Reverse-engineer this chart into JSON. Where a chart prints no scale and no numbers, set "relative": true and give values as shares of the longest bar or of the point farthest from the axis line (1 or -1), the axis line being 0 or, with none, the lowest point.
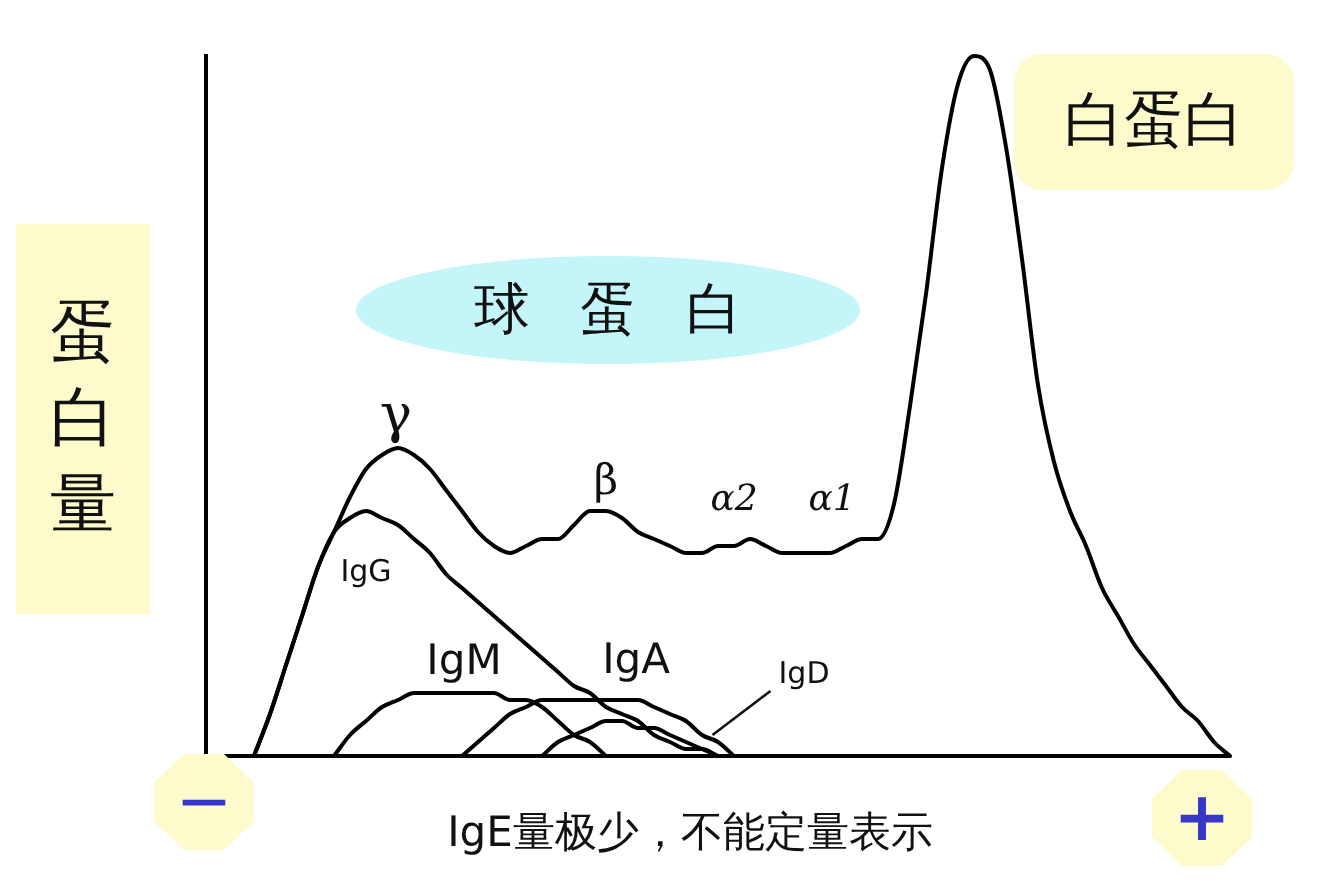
{
  "chart_data": {
    "type": "line",
    "relative": true,
    "tick_labels": false,
    "ylabel": "蛋白量",
    "categories": [
      null,
      null,
      null,
      null,
      null,
      null,
      null,
      null,
      null,
      null,
      null,
      null,
      null,
      null,
      null,
      null,
      null,
      null,
      null,
      null,
      null,
      null,
      null,
      null,
      null,
      null,
      null,
      null,
      null,
      null,
      null,
      null,
      null,
      null,
      null,
      null,
      null,
      null,
      null,
      null,
      null,
      null,
      null,
      null,
      null,
      null,
      null,
      null,
      null,
      null,
      null,
      null,
      null,
      null,
      null,
      null,
      null,
      null,
      null,
      null,
      null,
      null,
      null,
      null,
      null
    ],
    "series": [
      {
        "color": "#000000",
        "values": [
          null,
          null,
          null,
          0,
          0.06,
          0.13,
          0.2,
          0.27,
          0.32,
          0.37,
          0.41,
          0.43,
          0.44,
          0.43,
          0.41,
          0.38,
          0.35,
          0.32,
          0.3,
          0.29,
          0.3,
          0.31,
          0.31,
          0.33,
          0.35,
          0.35,
          0.34,
          0.32,
          0.31,
          0.3,
          0.29,
          0.29,
          0.3,
          0.3,
          0.31,
          0.3,
          0.29,
          0.29,
          0.29,
          0.29,
          0.3,
          0.31,
          0.31,
          0.36,
          0.5,
          0.66,
          0.84,
          0.96,
          1,
          0.98,
          0.87,
          0.71,
          0.53,
          0.42,
          0.35,
          0.3,
          0.24,
          0.2,
          0.16,
          0.13,
          0.1,
          0.07,
          0.05,
          0.02,
          0
        ]
      },
      {
        "name": "IgG",
        "color": "#000000",
        "values": [
          null,
          null,
          null,
          0,
          0.06,
          0.13,
          0.2,
          0.27,
          0.32,
          0.34,
          0.35,
          0.34,
          0.33,
          0.31,
          0.29,
          0.26,
          0.24,
          0.22,
          0.2,
          0.18,
          0.16,
          0.14,
          0.12,
          0.1,
          0.09,
          0.07,
          0.06,
          0.05,
          0.03,
          0.02,
          0.01,
          0.01,
          0,
          null,
          null,
          null,
          null,
          null,
          null,
          null,
          null,
          null,
          null,
          null,
          null,
          null,
          null,
          null,
          null,
          null,
          null,
          null,
          null,
          null,
          null,
          null,
          null,
          null,
          null,
          null,
          null,
          null,
          null,
          null,
          null
        ]
      },
      {
        "name": "IgM",
        "color": "#000000",
        "values": [
          null,
          null,
          null,
          null,
          null,
          null,
          null,
          null,
          0,
          0.03,
          0.05,
          0.07,
          0.08,
          0.09,
          0.09,
          0.09,
          0.09,
          0.09,
          0.09,
          0.08,
          0.08,
          0.07,
          0.05,
          0.03,
          0.02,
          0,
          null,
          null,
          null,
          null,
          null,
          null,
          null,
          null,
          null,
          null,
          null,
          null,
          null,
          null,
          null,
          null,
          null,
          null,
          null,
          null,
          null,
          null,
          null,
          null,
          null,
          null,
          null,
          null,
          null,
          null,
          null,
          null,
          null,
          null,
          null,
          null,
          null,
          null,
          null
        ]
      },
      {
        "name": "IgA",
        "color": "#000000",
        "values": [
          null,
          null,
          null,
          null,
          null,
          null,
          null,
          null,
          null,
          null,
          null,
          null,
          null,
          null,
          null,
          null,
          0,
          0.02,
          0.04,
          0.06,
          0.07,
          0.08,
          0.08,
          0.08,
          0.08,
          0.08,
          0.08,
          0.08,
          0.07,
          0.06,
          0.05,
          0.03,
          0.02,
          0,
          null,
          null,
          null,
          null,
          null,
          null,
          null,
          null,
          null,
          null,
          null,
          null,
          null,
          null,
          null,
          null,
          null,
          null,
          null,
          null,
          null,
          null,
          null,
          null,
          null,
          null,
          null,
          null,
          null,
          null,
          null
        ]
      },
      {
        "name": "IgD",
        "color": "#000000",
        "values": [
          null,
          null,
          null,
          null,
          null,
          null,
          null,
          null,
          null,
          null,
          null,
          null,
          null,
          null,
          null,
          null,
          null,
          null,
          null,
          null,
          null,
          0,
          0.02,
          0.03,
          0.04,
          0.05,
          0.05,
          0.04,
          0.04,
          0.03,
          0.02,
          0.01,
          0,
          null,
          null,
          null,
          null,
          null,
          null,
          null,
          null,
          null,
          null,
          null,
          null,
          null,
          null,
          null,
          null,
          null,
          null,
          null,
          null,
          null,
          null,
          null,
          null,
          null,
          null,
          null,
          null,
          null,
          null,
          null,
          null
        ]
      }
    ],
    "annotations": [
      "γ",
      "β",
      "α2",
      "α1",
      "球蛋白",
      "白蛋白",
      "−",
      "+",
      "IgE量极少，不能定量表示"
    ]
  }
}
